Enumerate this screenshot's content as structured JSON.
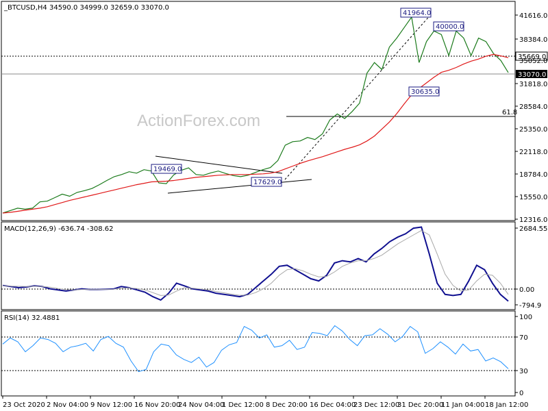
{
  "header": {
    "price_title": "_BTCUSD,H4  34590.0 34999.0 32659.0 33070.0",
    "macd_title": "MACD(12,26,9) -636.74 -308.62",
    "rsi_title": "RSI(14) 32.4881"
  },
  "watermark": "ActionForex.com",
  "colors": {
    "price": "#1a7a1a",
    "ma": "#e01818",
    "macd": "#101090",
    "signal": "#a8a8a8",
    "rsi": "#1e90ff",
    "box": "#1a1a80"
  },
  "chart_data": [
    {
      "type": "line",
      "panel": "price",
      "y_ticks": [
        "41616.0",
        "38384.0",
        "35052.0",
        "31818.0",
        "28584.0",
        "25350.0",
        "22118.0",
        "18784.0",
        "15550.0",
        "12316.0"
      ],
      "ylim": [
        12316,
        42850
      ],
      "series": [
        {
          "values": [
            13000,
            13350,
            13700,
            13550,
            13700,
            14600,
            14700,
            15200,
            15700,
            15400,
            15950,
            16200,
            16500,
            17050,
            17650,
            18200,
            18500,
            18900,
            18700,
            19200,
            19000,
            17300,
            17200,
            18450,
            19100,
            19450,
            18500,
            18400,
            18750,
            19000,
            18650,
            18350,
            18200,
            18400,
            18800,
            19200,
            19500,
            20500,
            22700,
            23200,
            23300,
            23800,
            23500,
            24300,
            26300,
            27150,
            26500,
            27500,
            28700,
            33000,
            34500,
            33500,
            36700,
            38000,
            39500,
            41000,
            34500,
            37500,
            39000,
            38500,
            35500,
            39000,
            38000,
            35500,
            38000,
            37500,
            35800,
            34800,
            33070
          ]
        },
        {
          "values": [
            13000,
            13100,
            13250,
            13400,
            13550,
            13700,
            13900,
            14200,
            14500,
            14800,
            15050,
            15300,
            15550,
            15800,
            16050,
            16300,
            16550,
            16800,
            17050,
            17250,
            17450,
            17500,
            17550,
            17650,
            17800,
            17950,
            18100,
            18200,
            18300,
            18400,
            18450,
            18500,
            18500,
            18500,
            18550,
            18600,
            18700,
            18900,
            19300,
            19700,
            20100,
            20450,
            20750,
            21050,
            21400,
            21750,
            22100,
            22400,
            22750,
            23300,
            24000,
            25000,
            26000,
            27200,
            28600,
            29900,
            30800,
            31600,
            32400,
            33100,
            33400,
            33800,
            34300,
            34700,
            35000,
            35400,
            35669,
            35450,
            35200
          ]
        }
      ],
      "levels": {
        "current": "33070.0",
        "resistance": "35669.0",
        "fib": "61.8"
      },
      "annotations": [
        "41964.0",
        "40000.0",
        "30635.0",
        "19469.0",
        "17629.0"
      ]
    },
    {
      "type": "line",
      "panel": "macd",
      "y_ticks": [
        "2684.55",
        "0.00",
        "-794.9"
      ],
      "ylim": [
        -794.9,
        2684.55
      ],
      "series": [
        {
          "values": [
            100,
            50,
            0,
            30,
            80,
            50,
            -50,
            -100,
            -150,
            -100,
            -50,
            -80,
            -80,
            -70,
            -60,
            50,
            0,
            -100,
            -200,
            -400,
            -550,
            -250,
            200,
            80,
            -50,
            -100,
            -150,
            -250,
            -300,
            -350,
            -400,
            -300,
            0,
            300,
            600,
            950,
            1000,
            800,
            600,
            400,
            300,
            550,
            1100,
            1200,
            1150,
            1300,
            1150,
            1500,
            1750,
            2050,
            2250,
            2400,
            2650,
            2700,
            1500,
            200,
            -300,
            -350,
            -300,
            300,
            1000,
            800,
            200,
            -300,
            -600
          ]
        },
        {
          "values": [
            80,
            70,
            60,
            50,
            60,
            55,
            20,
            -40,
            -90,
            -100,
            -80,
            -80,
            -80,
            -75,
            -70,
            -30,
            -10,
            -40,
            -100,
            -220,
            -350,
            -330,
            -150,
            0,
            -20,
            -60,
            -100,
            -170,
            -230,
            -290,
            -340,
            -330,
            -220,
            -50,
            200,
            550,
            800,
            850,
            750,
            600,
            480,
            500,
            700,
            950,
            1100,
            1200,
            1200,
            1300,
            1450,
            1700,
            1950,
            2150,
            2350,
            2550,
            2350,
            1500,
            600,
            100,
            -150,
            -100,
            300,
            600,
            550,
            200,
            -300
          ]
        }
      ]
    },
    {
      "type": "line",
      "panel": "rsi",
      "y_ticks": [
        "100",
        "70",
        "30",
        "0"
      ],
      "ylim": [
        0,
        100
      ],
      "series": [
        {
          "values": [
            64,
            72,
            67,
            54,
            62,
            72,
            70,
            65,
            54,
            60,
            62,
            65,
            55,
            70,
            74,
            65,
            60,
            42,
            28,
            31,
            54,
            64,
            62,
            50,
            44,
            40,
            47,
            34,
            40,
            56,
            63,
            66,
            87,
            82,
            72,
            76,
            60,
            62,
            69,
            57,
            60,
            79,
            78,
            75,
            88,
            81,
            70,
            62,
            75,
            76,
            84,
            77,
            67,
            74,
            87,
            80,
            52,
            58,
            67,
            60,
            51,
            64,
            55,
            57,
            42,
            46,
            41,
            32
          ]
        }
      ]
    }
  ],
  "x_axis_labels": [
    "23 Oct 2020",
    "2 Nov 04:00",
    "9 Nov 12:00",
    "16 Nov 20:00",
    "24 Nov 04:00",
    "1 Dec 12:00",
    "8 Dec 20:00",
    "16 Dec 04:00",
    "23 Dec 12:00",
    "31 Dec 20:00",
    "11 Jan 04:00",
    "18 Jan 12:00"
  ]
}
